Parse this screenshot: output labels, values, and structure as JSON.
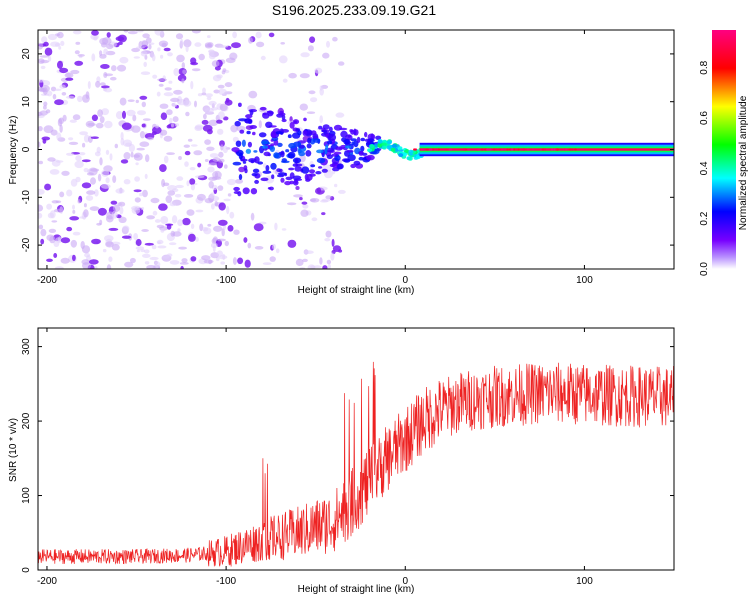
{
  "title": "S196.2025.233.09.19.G21",
  "chart_data": [
    {
      "type": "heatmap",
      "name": "spectrogram",
      "xlabel": "Height of straight line (km)",
      "ylabel": "Frequency (Hz)",
      "xlim": [
        -205,
        150
      ],
      "ylim": [
        -25,
        25
      ],
      "xticks": [
        -200,
        -100,
        0,
        100
      ],
      "yticks": [
        -20,
        -10,
        0,
        10,
        20
      ],
      "xtick_labels": [
        "-200",
        "-100",
        "0",
        "100"
      ],
      "ytick_labels": [
        "-20",
        "-10",
        "0",
        "10",
        "20"
      ],
      "colorbar": {
        "label": "Normalized spectral amplitude",
        "range": [
          0,
          0.95
        ],
        "ticks": [
          0.0,
          0.2,
          0.4,
          0.6,
          0.8
        ],
        "tick_labels": [
          "0.0",
          "0.2",
          "0.4",
          "0.6",
          "0.8"
        ],
        "colormap": [
          "#ffffff",
          "#7700ff",
          "#0000ff",
          "#00ffff",
          "#00ff00",
          "#ffff00",
          "#ff0000",
          "#ff0080"
        ]
      },
      "features": [
        {
          "x_range": [
            -205,
            -95
          ],
          "freq_range": [
            -25,
            25
          ],
          "amplitude": 0.05,
          "description": "noise"
        },
        {
          "x_range": [
            -95,
            -20
          ],
          "freq_range": [
            -8,
            8
          ],
          "amplitude": 0.15
        },
        {
          "x_range": [
            -80,
            -20
          ],
          "freq_range": [
            -3,
            3
          ],
          "amplitude": 0.25
        },
        {
          "x_range": [
            -20,
            10
          ],
          "freq_range": [
            -1,
            3
          ],
          "amplitude": 0.35
        },
        {
          "x_range": [
            10,
            150
          ],
          "freq_range": [
            -1,
            1
          ],
          "amplitude": 0.9
        }
      ]
    },
    {
      "type": "line",
      "name": "snr",
      "xlabel": "Height of straight line (km)",
      "ylabel": "SNR (10 * v/v)",
      "xlim": [
        -205,
        150
      ],
      "ylim": [
        0,
        325
      ],
      "xticks": [
        -200,
        -100,
        0,
        100
      ],
      "yticks": [
        0,
        100,
        200,
        300
      ],
      "xtick_labels": [
        "-200",
        "-100",
        "0",
        "100"
      ],
      "ytick_labels": [
        "0",
        "100",
        "200",
        "300"
      ],
      "color": "#ee2222",
      "x": [
        -205,
        -150,
        -120,
        -100,
        -80,
        -60,
        -40,
        -30,
        -20,
        -10,
        0,
        10,
        20,
        30,
        40,
        60,
        80,
        100,
        120,
        150
      ],
      "y": [
        18,
        18,
        20,
        25,
        40,
        50,
        65,
        90,
        120,
        150,
        175,
        200,
        215,
        225,
        230,
        235,
        238,
        236,
        234,
        232
      ]
    }
  ]
}
